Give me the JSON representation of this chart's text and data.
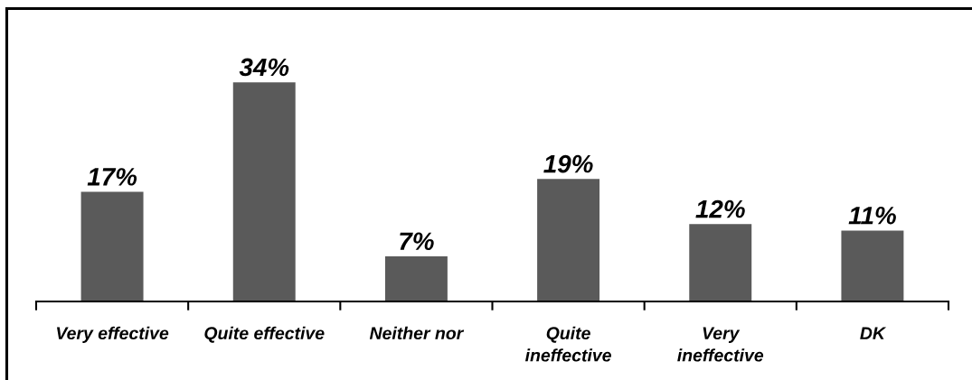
{
  "chart_data": {
    "type": "bar",
    "categories": [
      "Very effective",
      "Quite effective",
      "Neither nor",
      "Quite\nineffective",
      "Very\nineffective",
      "DK"
    ],
    "values": [
      17,
      34,
      7,
      19,
      12,
      11
    ],
    "value_labels": [
      "17%",
      "34%",
      "7%",
      "19%",
      "12%",
      "11%"
    ],
    "color": "#5a5a5a",
    "tick_labels": "x"
  }
}
